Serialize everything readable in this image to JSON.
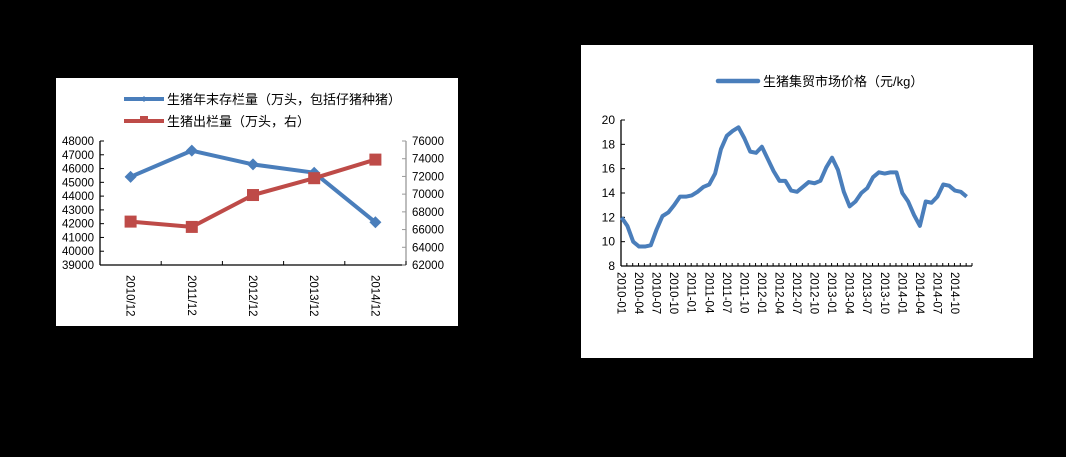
{
  "chart_data": [
    {
      "type": "line",
      "title": "",
      "categories": [
        "2010/12",
        "2011/12",
        "2012/12",
        "2013/12",
        "2014/12"
      ],
      "series": [
        {
          "name": "生猪年末存栏量（万头，包括仔猪种猪）",
          "axis": "left",
          "color": "#4A7EBB",
          "marker": "diamond",
          "values": [
            45400,
            47300,
            46300,
            45700,
            42100
          ]
        },
        {
          "name": "生猪出栏量（万头，右）",
          "axis": "right",
          "color": "#BE4B48",
          "marker": "square",
          "values": [
            66900,
            66300,
            69900,
            71800,
            73900
          ]
        }
      ],
      "ylim_left": [
        39000,
        48000
      ],
      "yticks_left": [
        39000,
        40000,
        41000,
        42000,
        43000,
        44000,
        45000,
        46000,
        47000,
        48000
      ],
      "ylim_right": [
        62000,
        76000
      ],
      "yticks_right": [
        62000,
        64000,
        66000,
        68000,
        70000,
        72000,
        74000,
        76000
      ],
      "xlabel": "",
      "ylabel": "",
      "legend_position": "top",
      "grid": false
    },
    {
      "type": "line",
      "title": "",
      "series": [
        {
          "name": "生猪集贸市场价格（元/kg）",
          "color": "#4A7EBB",
          "values": [
            12.0,
            11.3,
            10.0,
            9.6,
            9.6,
            9.7,
            11.0,
            12.1,
            12.4,
            13.0,
            13.7,
            13.7,
            13.8,
            14.1,
            14.5,
            14.7,
            15.6,
            17.6,
            18.7,
            19.1,
            19.4,
            18.5,
            17.4,
            17.3,
            17.8,
            16.8,
            15.8,
            15.0,
            15.0,
            14.2,
            14.1,
            14.5,
            14.9,
            14.8,
            15.0,
            16.1,
            16.9,
            15.9,
            14.1,
            12.9,
            13.3,
            14.0,
            14.4,
            15.3,
            15.7,
            15.6,
            15.7,
            15.7,
            14.0,
            13.3,
            12.2,
            11.3,
            13.3,
            13.2,
            13.7,
            14.7,
            14.6,
            14.2,
            14.1,
            13.7
          ]
        }
      ],
      "x_start": "2010-01",
      "x_end": "2014-12",
      "x_tick_labels": [
        "2010-01",
        "2010-04",
        "2010-07",
        "2010-10",
        "2011-01",
        "2011-04",
        "2011-07",
        "2011-10",
        "2012-01",
        "2012-04",
        "2012-07",
        "2012-10",
        "2013-01",
        "2013-04",
        "2013-07",
        "2013-10",
        "2014-01",
        "2014-04",
        "2014-07",
        "2014-10"
      ],
      "ylim": [
        8,
        20
      ],
      "yticks": [
        8,
        10,
        12,
        14,
        16,
        18,
        20
      ],
      "xlabel": "",
      "ylabel": "",
      "legend_position": "top",
      "grid": false
    }
  ]
}
